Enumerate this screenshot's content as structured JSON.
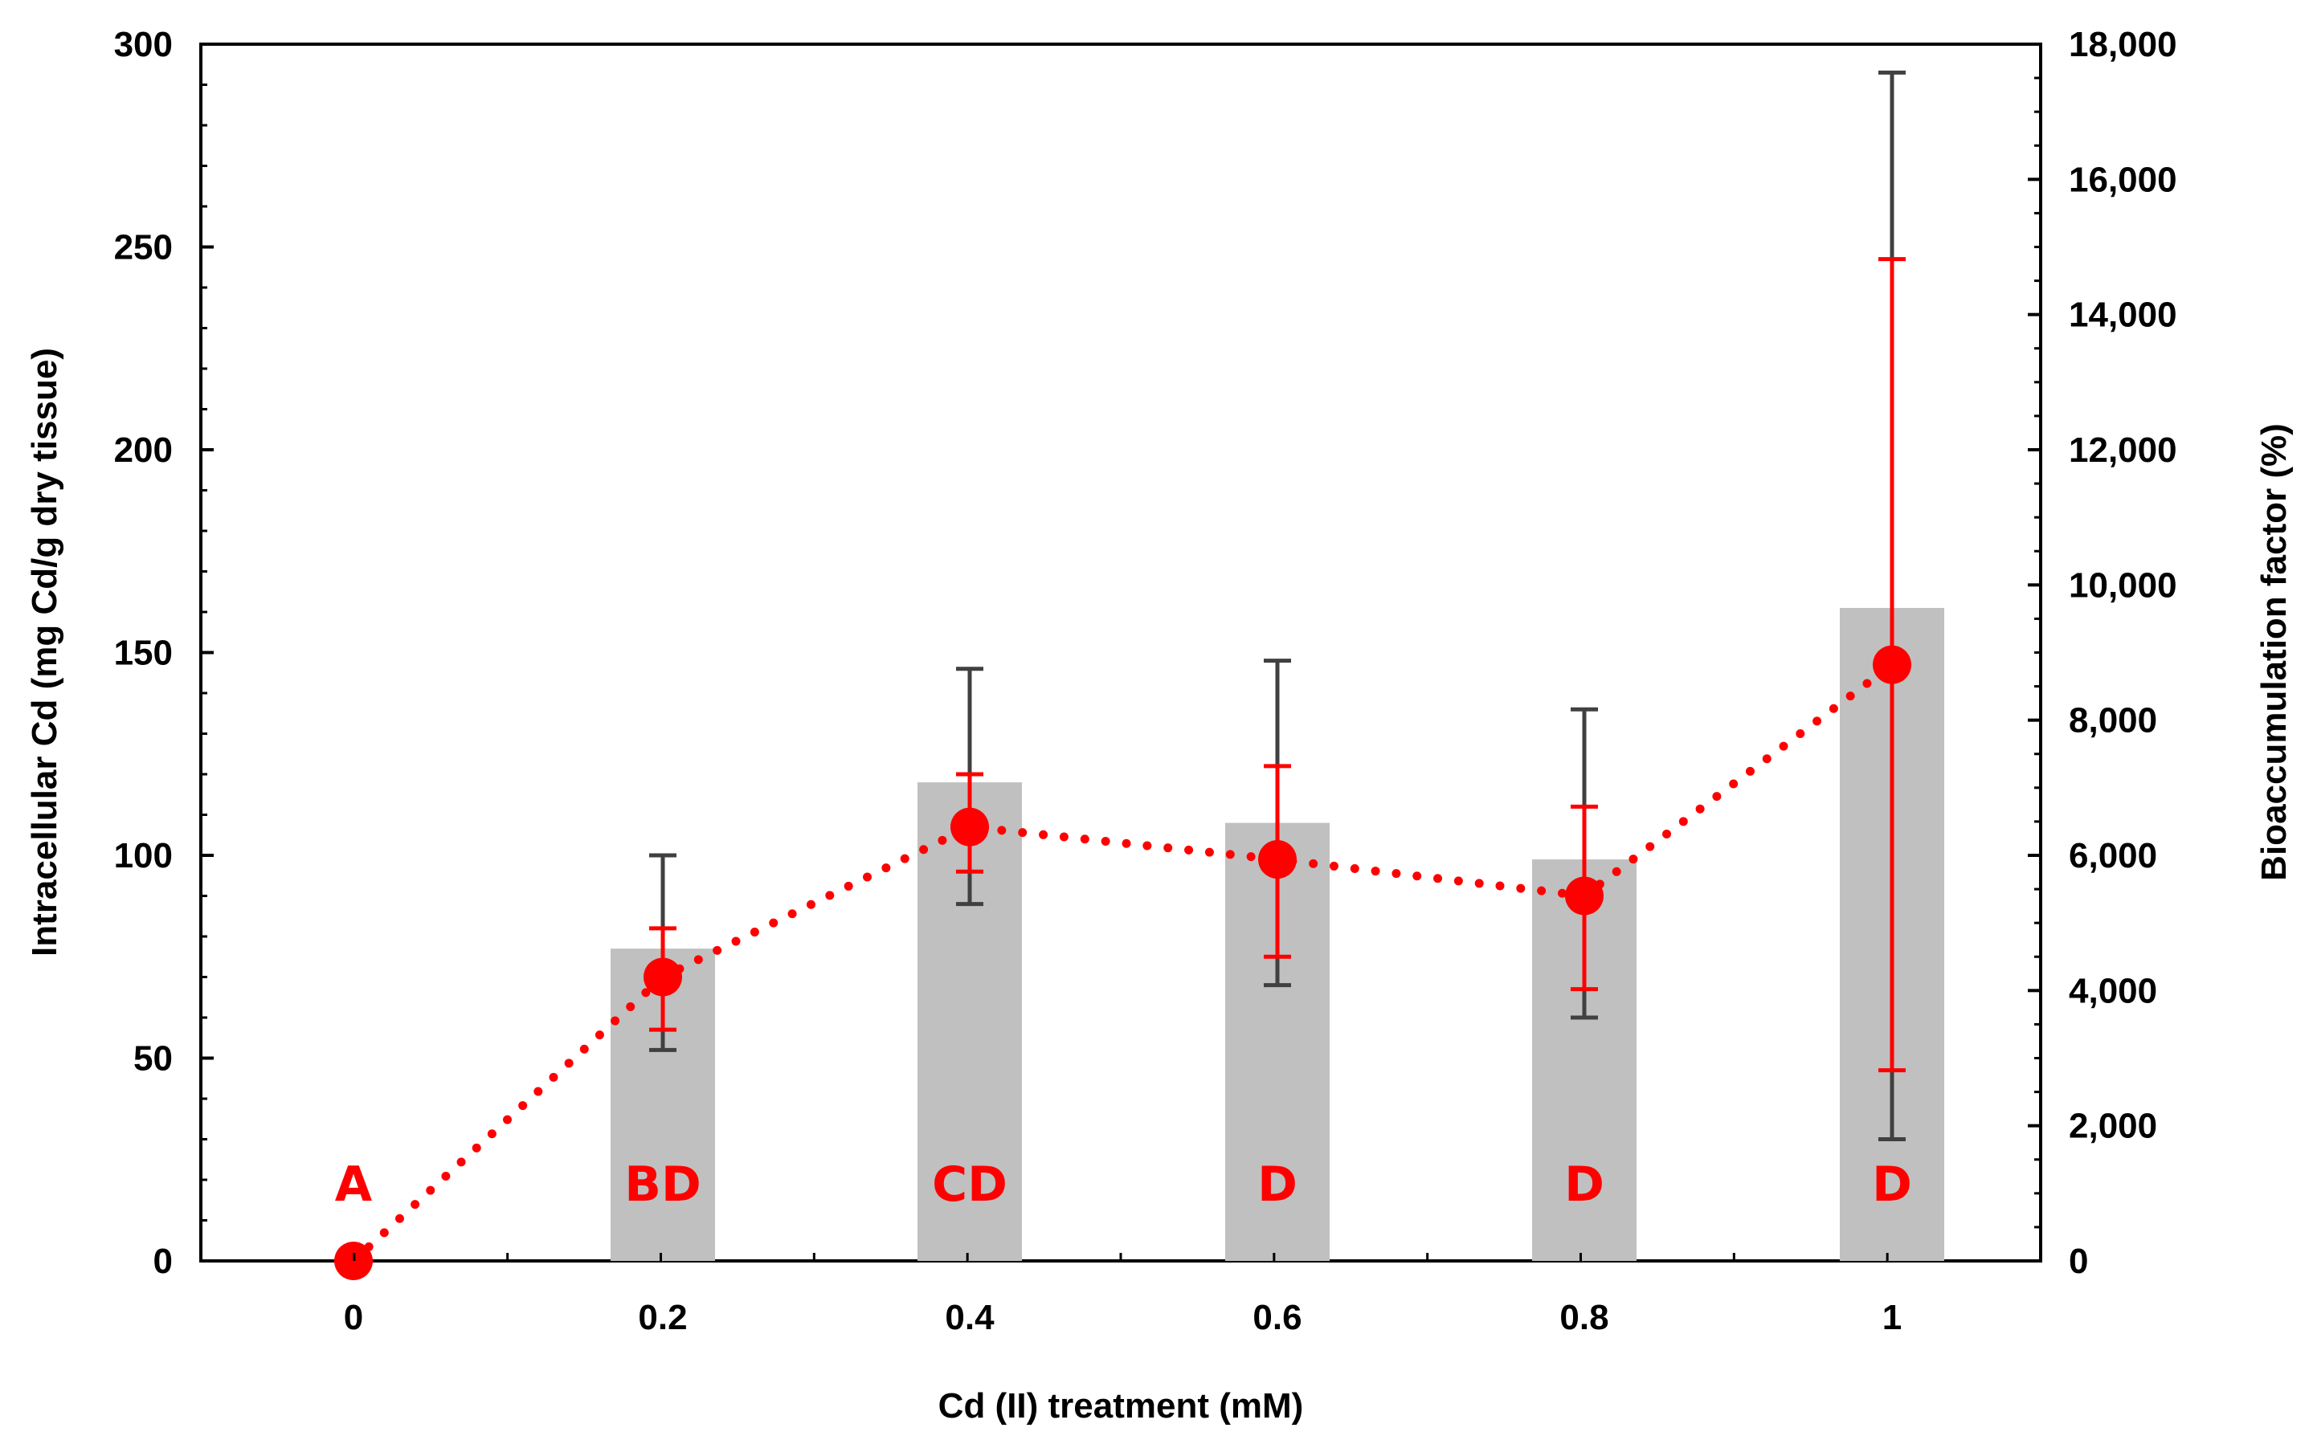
{
  "chart_data": {
    "type": "bar",
    "title": "",
    "xlabel": "Cd (II) treatment (mM)",
    "ylabel": "Intracellular Cd (mg Cd/g dry tissue)",
    "y2label": "Bioaccumulation factor (%)",
    "categories": [
      "0",
      "0.2",
      "0.4",
      "0.6",
      "0.8",
      "1"
    ],
    "ylim": [
      0,
      300
    ],
    "y2lim": [
      0,
      18000
    ],
    "yticks": [
      "0",
      "50",
      "100",
      "150",
      "200",
      "250",
      "300"
    ],
    "y2ticks": [
      "0",
      "2,000",
      "4,000",
      "6,000",
      "8,000",
      "10,000",
      "12,000",
      "14,000",
      "16,000",
      "18,000"
    ],
    "grid": false,
    "legend": "none",
    "series": [
      {
        "type": "bar",
        "axis": "left",
        "values": [
          0,
          77,
          118,
          108,
          99,
          161
        ],
        "error_low": [
          0,
          52,
          88,
          68,
          60,
          30
        ],
        "error_high": [
          0,
          100,
          146,
          148,
          136,
          293
        ],
        "color": "#c0c0c0",
        "error_color": "#404040"
      },
      {
        "type": "line",
        "axis": "left",
        "style": "dotted",
        "values": [
          0,
          70,
          107,
          99,
          90,
          147
        ],
        "error_low": [
          0,
          57,
          96,
          75,
          67,
          47
        ],
        "error_high": [
          0,
          82,
          120,
          122,
          112,
          247
        ],
        "color": "#ff0000"
      }
    ],
    "annotations": [
      "A",
      "BD",
      "CD",
      "D",
      "D",
      "D"
    ],
    "annotation_color": "#ff0000"
  }
}
